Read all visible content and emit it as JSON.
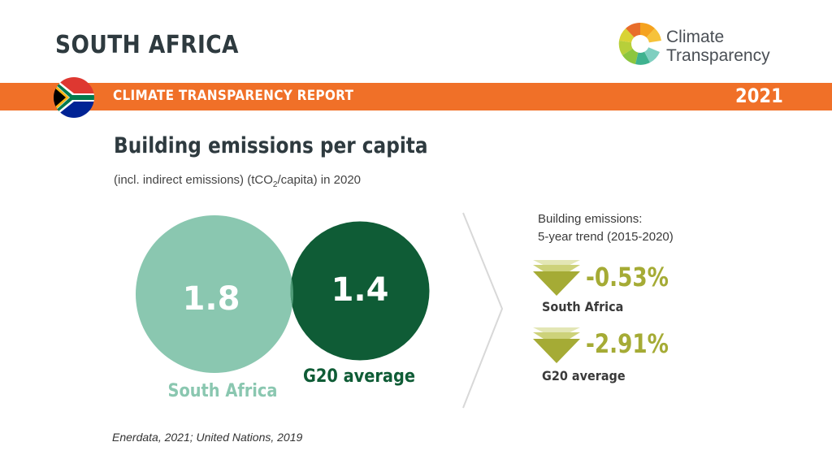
{
  "header": {
    "country": "SOUTH AFRICA",
    "brand_line1": "Climate",
    "brand_line2": "Transparency",
    "report_label": "CLIMATE TRANSPARENCY REPORT",
    "year": "2021"
  },
  "chart": {
    "title": "Building emissions per capita",
    "subtitle_pre": "(incl. indirect emissions) (tCO",
    "subtitle_sub": "2",
    "subtitle_post": "/capita) in 2020"
  },
  "chart_data": {
    "type": "bubble",
    "title": "Building emissions per capita",
    "unit": "tCO2/capita",
    "year": "2020",
    "categories": [
      "South Africa",
      "G20 average"
    ],
    "values": [
      1.8,
      1.4
    ],
    "value_labels": [
      "1.8",
      "1.4"
    ],
    "colors": [
      "#8ac7b0",
      "#0f5c36"
    ],
    "trend": {
      "title_line1": "Building emissions:",
      "title_line2": "5-year trend (2015-2020)",
      "items": [
        {
          "name": "South Africa",
          "value": -0.53,
          "label": "-0.53%",
          "direction": "down"
        },
        {
          "name": "G20 average",
          "value": -2.91,
          "label": "-2.91%",
          "direction": "down"
        }
      ],
      "color": "#a5ab35"
    }
  },
  "source": "Enerdata, 2021; United Nations, 2019",
  "colors": {
    "orange_band": "#f07028",
    "title": "#2e3a3f"
  }
}
